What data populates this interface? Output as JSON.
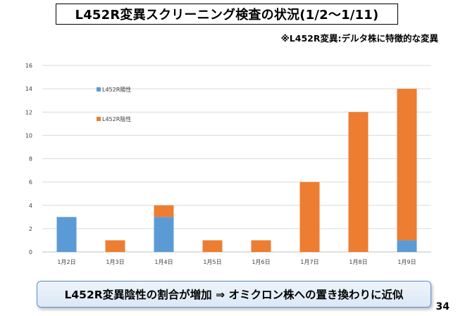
{
  "slide": {
    "title": "L452R変異スクリーニング検査の状況(1/2～1/11)",
    "note": "※L452R変異:デルタ株に特徴的な変異",
    "conclusion": "L452R変異陰性の割合が増加 ⇒ オミクロン株への置き換わりに近似",
    "page_number": "34"
  },
  "chart_data": {
    "type": "bar",
    "stacked": true,
    "categories": [
      "1月2日",
      "1月3日",
      "1月4日",
      "1月5日",
      "1月6日",
      "1月7日",
      "1月8日",
      "1月9日"
    ],
    "series": [
      {
        "name": "L452R陽性",
        "color": "#5b9bd5",
        "values": [
          3,
          0,
          3,
          0,
          0,
          0,
          0,
          1
        ]
      },
      {
        "name": "L452R陰性",
        "color": "#ed7d31",
        "values": [
          0,
          1,
          1,
          1,
          1,
          6,
          12,
          13
        ]
      }
    ],
    "ylim": [
      0,
      16
    ],
    "yticks": [
      0,
      2,
      4,
      6,
      8,
      10,
      12,
      14,
      16
    ],
    "grid": true,
    "legend_position": "top-left"
  }
}
